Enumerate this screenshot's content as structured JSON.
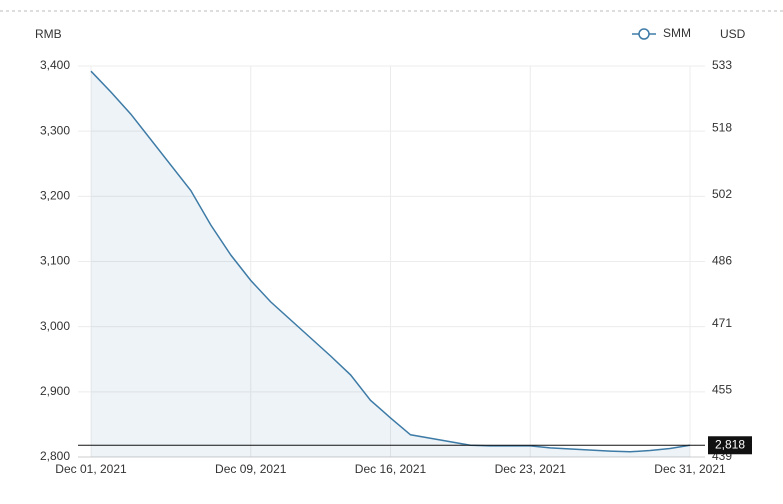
{
  "chart_data": {
    "type": "line",
    "y_label": "RMB",
    "y2_label": "USD",
    "x": [
      "2021-12-01",
      "2021-12-02",
      "2021-12-03",
      "2021-12-06",
      "2021-12-07",
      "2021-12-08",
      "2021-12-09",
      "2021-12-10",
      "2021-12-13",
      "2021-12-14",
      "2021-12-15",
      "2021-12-16",
      "2021-12-17",
      "2021-12-20",
      "2021-12-21",
      "2021-12-22",
      "2021-12-23",
      "2021-12-24",
      "2021-12-27",
      "2021-12-28",
      "2021-12-29",
      "2021-12-30",
      "2021-12-31"
    ],
    "series": [
      {
        "name": "SMM",
        "color": "#3d7ba6",
        "values": [
          3392,
          3360,
          3326,
          3209,
          3156,
          3110,
          3071,
          3038,
          2955,
          2926,
          2887,
          2860,
          2834,
          2818,
          2817,
          2817,
          2817,
          2814,
          2809,
          2808,
          2810,
          2813,
          2818
        ]
      }
    ],
    "xlim": [
      "2021-12-01",
      "2021-12-31"
    ],
    "xticks": [
      {
        "value": "2021-12-01",
        "label": "Dec 01, 2021"
      },
      {
        "value": "2021-12-09",
        "label": "Dec 09, 2021"
      },
      {
        "value": "2021-12-16",
        "label": "Dec 16, 2021"
      },
      {
        "value": "2021-12-23",
        "label": "Dec 23, 2021"
      },
      {
        "value": "2021-12-31",
        "label": "Dec 31, 2021"
      }
    ],
    "ylim": [
      2800,
      3400
    ],
    "yticks": [
      {
        "value": 2800,
        "label": "2,800"
      },
      {
        "value": 2900,
        "label": "2,900"
      },
      {
        "value": 3000,
        "label": "3,000"
      },
      {
        "value": 3100,
        "label": "3,100"
      },
      {
        "value": 3200,
        "label": "3,200"
      },
      {
        "value": 3300,
        "label": "3,300"
      },
      {
        "value": 3400,
        "label": "3,400"
      }
    ],
    "y2lim": [
      439,
      533
    ],
    "y2ticks": [
      439,
      455,
      471,
      486,
      502,
      518,
      533
    ],
    "reference_line": {
      "value": 2818,
      "label": "2,818"
    },
    "grid": true,
    "legend": "top-right"
  }
}
